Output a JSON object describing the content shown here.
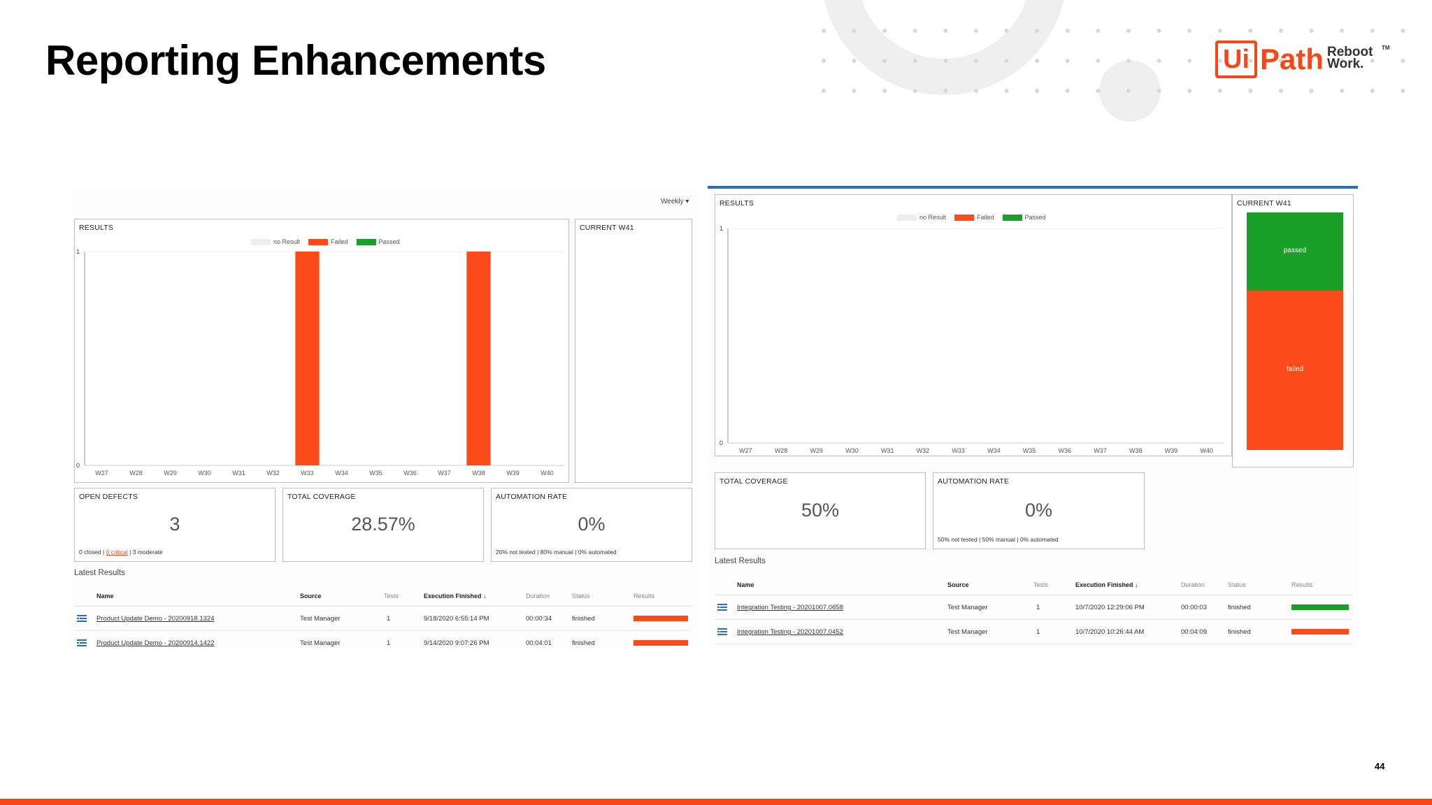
{
  "slide": {
    "title": "Reporting Enhancements",
    "page_number": "44",
    "logo": {
      "ui": "Ui",
      "path": "Path",
      "tagline": "Reboot\nWork.",
      "tm": "TM"
    },
    "colors": {
      "brand": "#fa4616",
      "failed": "#fc4a1a",
      "passed": "#1a9f29",
      "no_result": "#eeeeee",
      "header_line": "#2a6db5"
    }
  },
  "left": {
    "weekly_label": "Weekly",
    "results": {
      "title": "RESULTS",
      "legend": [
        "no Result",
        "Failed",
        "Passed"
      ]
    },
    "current": {
      "title": "CURRENT W41"
    },
    "open_defects": {
      "title": "OPEN DEFECTS",
      "value": "3",
      "sub_closed": "0 closed | ",
      "sub_critical": "0 critical",
      "sub_moderate": " | 3 moderate"
    },
    "total_coverage": {
      "title": "TOTAL COVERAGE",
      "value": "28.57%"
    },
    "automation_rate": {
      "title": "AUTOMATION RATE",
      "value": "0%",
      "sub": "20% not tested | 80% manual | 0% automated"
    },
    "latest_results": {
      "label": "Latest Results",
      "columns": [
        "Name",
        "Source",
        "Tests",
        "Execution Finished",
        "Duration",
        "Status",
        "Results"
      ],
      "rows": [
        {
          "name": "Product Update Demo - 20200918.1324",
          "source": "Test Manager",
          "tests": "1",
          "finished": "9/18/2020 6:55:14 PM",
          "duration": "00:00:34",
          "status": "finished",
          "result": "failed"
        },
        {
          "name": "Product Update Demo - 20200914.1422",
          "source": "Test Manager",
          "tests": "1",
          "finished": "9/14/2020 9:07:26 PM",
          "duration": "00:04:01",
          "status": "finished",
          "result": "failed"
        }
      ]
    }
  },
  "right": {
    "results": {
      "title": "RESULTS",
      "legend": [
        "no Result",
        "Failed",
        "Passed"
      ]
    },
    "current": {
      "title": "CURRENT W41",
      "passed_label": "passed",
      "failed_label": "failed"
    },
    "total_coverage": {
      "title": "TOTAL COVERAGE",
      "value": "50%"
    },
    "automation_rate": {
      "title": "AUTOMATION RATE",
      "value": "0%",
      "sub": "50% not tested | 50% manual | 0% automated"
    },
    "latest_results": {
      "label": "Latest Results",
      "columns": [
        "Name",
        "Source",
        "Tests",
        "Execution Finished",
        "Duration",
        "Status",
        "Results"
      ],
      "rows": [
        {
          "name": "Integration Testing - 20201007.0658",
          "source": "Test Manager",
          "tests": "1",
          "finished": "10/7/2020 12:29:06 PM",
          "duration": "00:00:03",
          "status": "finished",
          "result": "passed"
        },
        {
          "name": "Integration Testing - 20201007.0452",
          "source": "Test Manager",
          "tests": "1",
          "finished": "10/7/2020 10:26:44 AM",
          "duration": "00:04:09",
          "status": "finished",
          "result": "failed"
        }
      ]
    }
  },
  "chart_data": [
    {
      "type": "bar",
      "title": "RESULTS",
      "categories": [
        "W27",
        "W28",
        "W29",
        "W30",
        "W31",
        "W32",
        "W33",
        "W34",
        "W35",
        "W36",
        "W37",
        "W38",
        "W39",
        "W40"
      ],
      "series": [
        {
          "name": "no Result",
          "values": [
            0,
            0,
            0,
            0,
            0,
            0,
            0,
            0,
            0,
            0,
            0,
            0,
            0,
            0
          ]
        },
        {
          "name": "Failed",
          "values": [
            0,
            0,
            0,
            0,
            0,
            0,
            1,
            0,
            0,
            0,
            0,
            1,
            0,
            0
          ]
        },
        {
          "name": "Passed",
          "values": [
            0,
            0,
            0,
            0,
            0,
            0,
            0,
            0,
            0,
            0,
            0,
            0,
            0,
            0
          ]
        }
      ],
      "ylim": [
        0,
        1
      ],
      "yticks": [
        "0",
        "1"
      ],
      "legend": "top-center"
    },
    {
      "type": "bar",
      "title": "RESULTS",
      "categories": [
        "W27",
        "W28",
        "W29",
        "W30",
        "W31",
        "W32",
        "W33",
        "W34",
        "W35",
        "W36",
        "W37",
        "W38",
        "W39",
        "W40"
      ],
      "series": [
        {
          "name": "no Result",
          "values": [
            0,
            0,
            0,
            0,
            0,
            0,
            0,
            0,
            0,
            0,
            0,
            0,
            0,
            0
          ]
        },
        {
          "name": "Failed",
          "values": [
            0,
            0,
            0,
            0,
            0,
            0,
            0,
            0,
            0,
            0,
            0,
            0,
            0,
            0
          ]
        },
        {
          "name": "Passed",
          "values": [
            0,
            0,
            0,
            0,
            0,
            0,
            0,
            0,
            0,
            0,
            0,
            0,
            0,
            0
          ]
        }
      ],
      "ylim": [
        0,
        1
      ],
      "yticks": [
        "0",
        "1"
      ],
      "legend": "top-center"
    },
    {
      "type": "bar",
      "title": "CURRENT W41",
      "categories": [
        "W41"
      ],
      "series": [
        {
          "name": "passed",
          "values": [
            0.33
          ]
        },
        {
          "name": "failed",
          "values": [
            0.67
          ]
        }
      ],
      "stacked": true
    }
  ]
}
